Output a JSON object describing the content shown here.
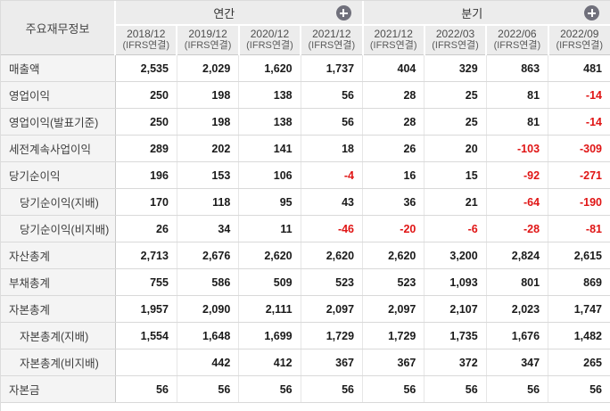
{
  "table": {
    "corner_label": "주요재무정보",
    "groups": [
      {
        "label": "연간",
        "icon": "plus-circle-icon"
      },
      {
        "label": "분기",
        "icon": "plus-circle-icon"
      }
    ],
    "columns": [
      {
        "period": "2018/12",
        "standard": "(IFRS연결)",
        "group": "연간"
      },
      {
        "period": "2019/12",
        "standard": "(IFRS연결)",
        "group": "연간"
      },
      {
        "period": "2020/12",
        "standard": "(IFRS연결)",
        "group": "연간"
      },
      {
        "period": "2021/12",
        "standard": "(IFRS연결)",
        "group": "연간"
      },
      {
        "period": "2021/12",
        "standard": "(IFRS연결)",
        "group": "분기"
      },
      {
        "period": "2022/03",
        "standard": "(IFRS연결)",
        "group": "분기"
      },
      {
        "period": "2022/06",
        "standard": "(IFRS연결)",
        "group": "분기"
      },
      {
        "period": "2022/09",
        "standard": "(IFRS연결)",
        "group": "분기"
      }
    ],
    "rows": [
      {
        "label": "매출액",
        "indent": false,
        "values": [
          "2,535",
          "2,029",
          "1,620",
          "1,737",
          "404",
          "329",
          "863",
          "481"
        ]
      },
      {
        "label": "영업이익",
        "indent": false,
        "values": [
          "250",
          "198",
          "138",
          "56",
          "28",
          "25",
          "81",
          "-14"
        ]
      },
      {
        "label": "영업이익(발표기준)",
        "indent": false,
        "values": [
          "250",
          "198",
          "138",
          "56",
          "28",
          "25",
          "81",
          "-14"
        ]
      },
      {
        "label": "세전계속사업이익",
        "indent": false,
        "values": [
          "289",
          "202",
          "141",
          "18",
          "26",
          "20",
          "-103",
          "-309"
        ]
      },
      {
        "label": "당기순이익",
        "indent": false,
        "values": [
          "196",
          "153",
          "106",
          "-4",
          "16",
          "15",
          "-92",
          "-271"
        ]
      },
      {
        "label": "당기순이익(지배)",
        "indent": true,
        "values": [
          "170",
          "118",
          "95",
          "43",
          "36",
          "21",
          "-64",
          "-190"
        ]
      },
      {
        "label": "당기순이익(비지배)",
        "indent": true,
        "values": [
          "26",
          "34",
          "11",
          "-46",
          "-20",
          "-6",
          "-28",
          "-81"
        ]
      },
      {
        "label": "자산총계",
        "indent": false,
        "values": [
          "2,713",
          "2,676",
          "2,620",
          "2,620",
          "2,620",
          "3,200",
          "2,824",
          "2,615"
        ]
      },
      {
        "label": "부채총계",
        "indent": false,
        "values": [
          "755",
          "586",
          "509",
          "523",
          "523",
          "1,093",
          "801",
          "869"
        ]
      },
      {
        "label": "자본총계",
        "indent": false,
        "values": [
          "1,957",
          "2,090",
          "2,111",
          "2,097",
          "2,097",
          "2,107",
          "2,023",
          "1,747"
        ]
      },
      {
        "label": "자본총계(지배)",
        "indent": true,
        "values": [
          "1,554",
          "1,648",
          "1,699",
          "1,729",
          "1,729",
          "1,735",
          "1,676",
          "1,482"
        ]
      },
      {
        "label": "자본총계(비지배)",
        "indent": true,
        "values": [
          "",
          "442",
          "412",
          "367",
          "367",
          "372",
          "347",
          "265"
        ]
      },
      {
        "label": "자본금",
        "indent": false,
        "values": [
          "56",
          "56",
          "56",
          "56",
          "56",
          "56",
          "56",
          "56"
        ]
      }
    ]
  },
  "colors": {
    "header_bg": "#ececec",
    "label_col_bg": "#f4f4f4",
    "negative_value": "#e01515",
    "value_text": "#1a1a1a",
    "plus_icon_bg": "#70707b"
  }
}
